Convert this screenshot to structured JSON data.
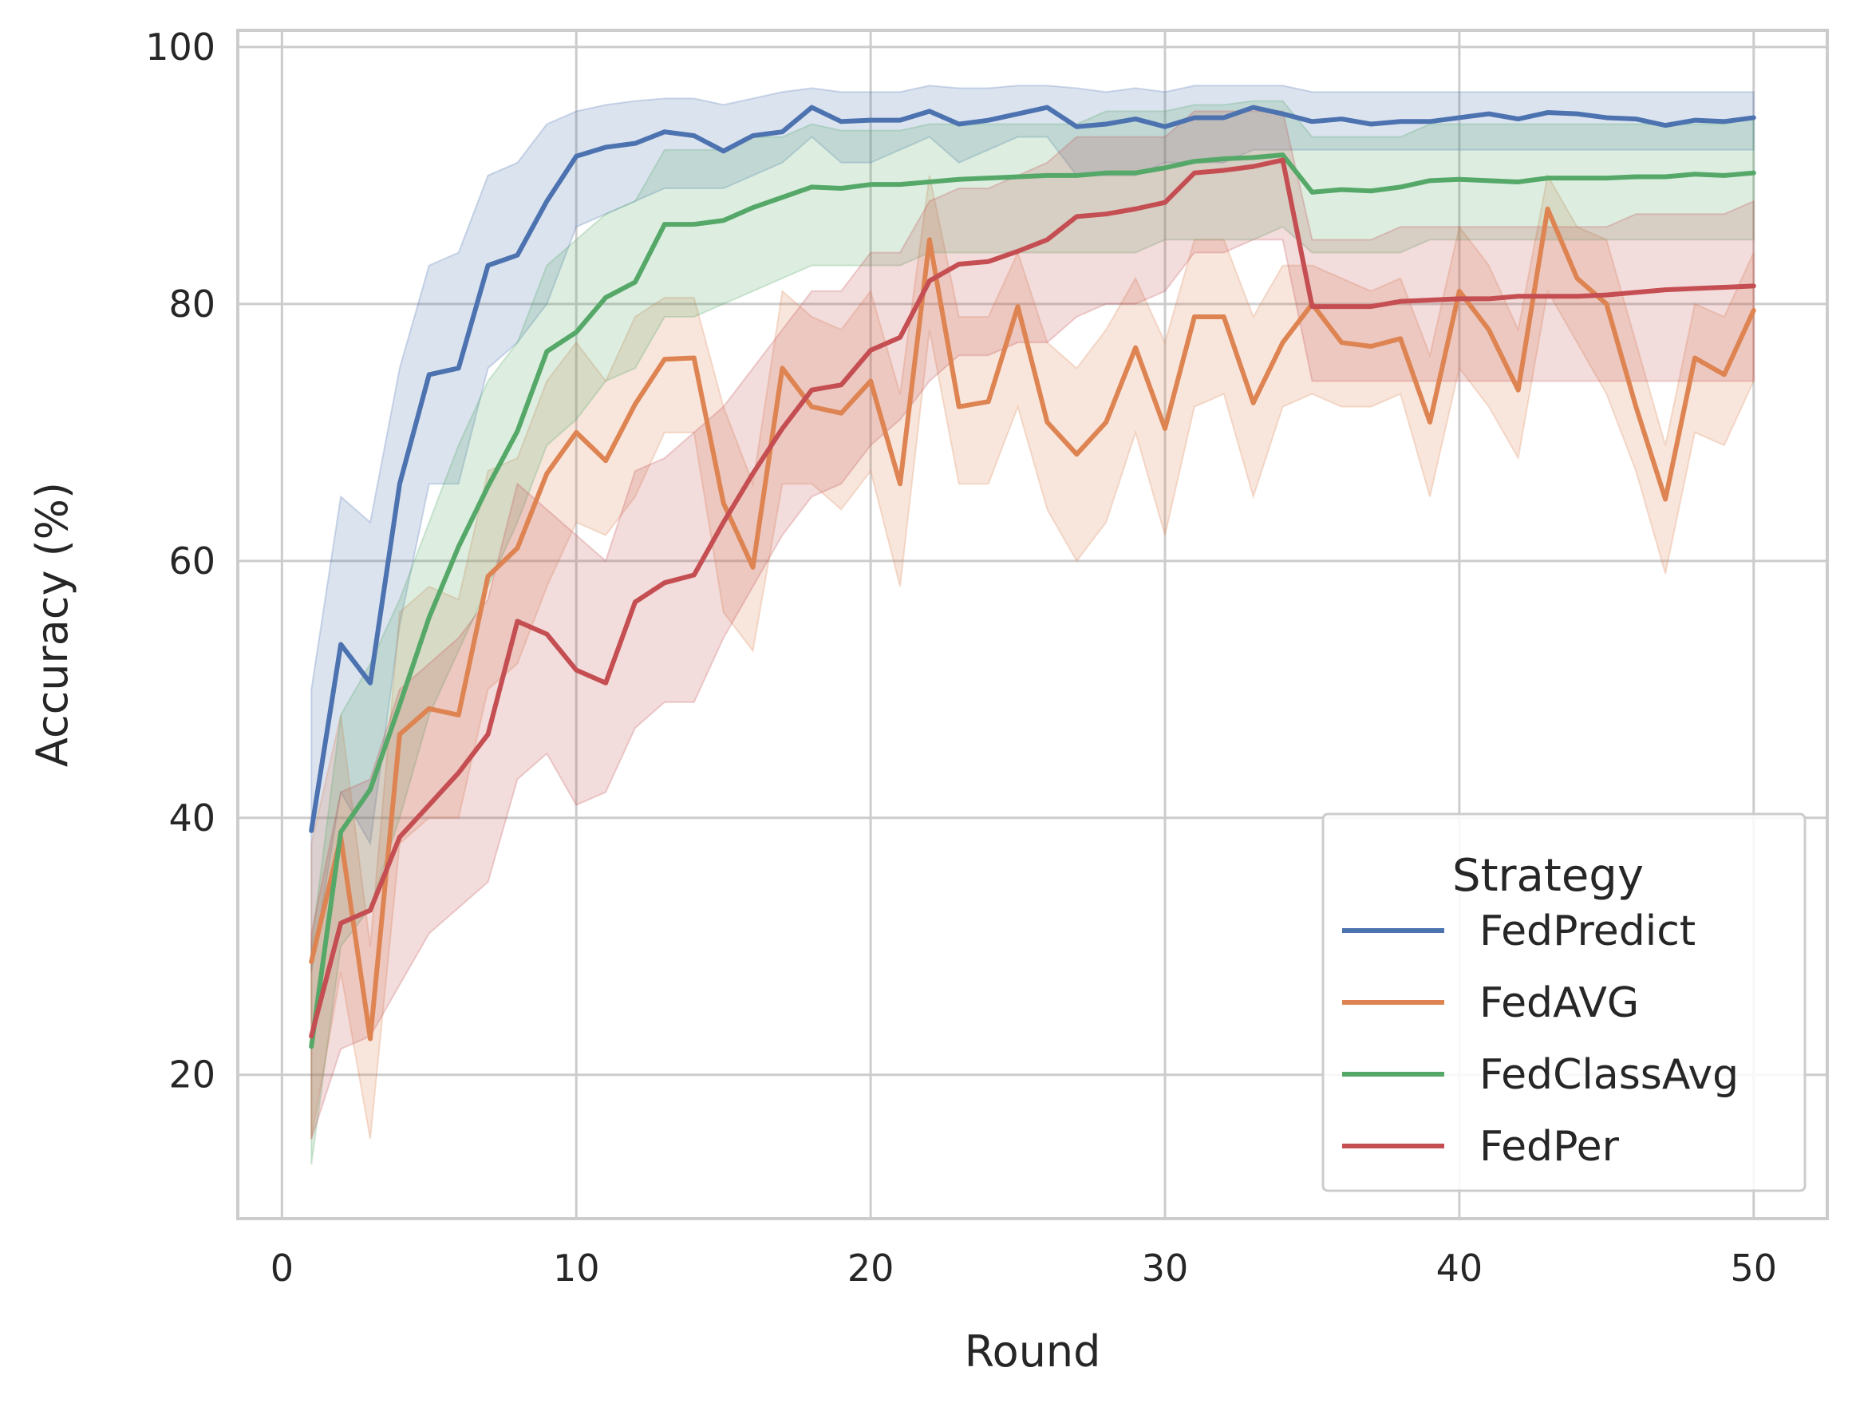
{
  "chart_data": {
    "type": "line",
    "title": "",
    "xlabel": "Round",
    "ylabel": "Accuracy (%)",
    "xlim": [
      -1.5,
      52.5
    ],
    "ylim": [
      8.8,
      101.3
    ],
    "xticks": [
      0,
      10,
      20,
      30,
      40,
      50
    ],
    "yticks": [
      20,
      40,
      60,
      80,
      100
    ],
    "grid": true,
    "legend": {
      "title": "Strategy",
      "placement": "lower-right"
    },
    "x": [
      1,
      2,
      3,
      4,
      5,
      6,
      7,
      8,
      9,
      10,
      11,
      12,
      13,
      14,
      15,
      16,
      17,
      18,
      19,
      20,
      21,
      22,
      23,
      24,
      25,
      26,
      27,
      28,
      29,
      30,
      31,
      32,
      33,
      34,
      35,
      36,
      37,
      38,
      39,
      40,
      41,
      42,
      43,
      44,
      45,
      46,
      47,
      48,
      49,
      50
    ],
    "series": [
      {
        "name": "FedPredict",
        "color": "#4c72b0",
        "values": [
          39.0,
          53.5,
          50.5,
          66.0,
          74.5,
          75.0,
          83.0,
          83.8,
          88.0,
          91.5,
          92.2,
          92.5,
          93.4,
          93.1,
          91.9,
          93.1,
          93.4,
          95.3,
          94.2,
          94.3,
          94.3,
          95.0,
          94.0,
          94.3,
          94.8,
          95.3,
          93.8,
          94.0,
          94.4,
          93.8,
          94.5,
          94.5,
          95.3,
          94.8,
          94.2,
          94.4,
          94.0,
          94.2,
          94.2,
          94.5,
          94.8,
          94.4,
          94.9,
          94.8,
          94.5,
          94.4,
          93.9,
          94.3,
          94.2,
          94.5
        ],
        "lower": [
          28,
          42,
          38,
          55,
          66,
          66,
          75,
          77,
          80,
          86,
          87,
          88,
          89,
          89,
          89,
          90,
          91,
          93,
          91,
          91,
          92,
          93,
          91,
          92,
          93,
          93,
          90,
          90,
          90,
          91,
          91,
          91,
          92,
          92,
          92,
          92,
          92,
          92,
          92,
          92,
          92,
          92,
          92,
          92,
          92,
          92,
          92,
          92,
          92,
          92
        ],
        "upper": [
          50,
          65,
          63,
          75,
          83,
          84,
          90,
          91,
          94,
          95,
          95.5,
          95.8,
          96,
          96,
          95.5,
          96,
          96.5,
          96.8,
          96.5,
          96.5,
          96.5,
          97,
          96.8,
          96.8,
          97,
          97,
          96.8,
          96.5,
          96.8,
          96.5,
          97,
          97,
          97,
          97,
          96.5,
          96.5,
          96.5,
          96.5,
          96.5,
          96.5,
          96.5,
          96.5,
          96.5,
          96.5,
          96.5,
          96.5,
          96.5,
          96.5,
          96.5,
          96.5
        ]
      },
      {
        "name": "FedAVG",
        "color": "#dd8452",
        "values": [
          28.8,
          38.5,
          22.8,
          46.5,
          48.5,
          48.0,
          58.8,
          61.0,
          66.8,
          70.0,
          67.8,
          72.2,
          75.7,
          75.8,
          64.5,
          59.5,
          75.0,
          72.0,
          71.5,
          74.0,
          66.0,
          85.0,
          72.0,
          72.4,
          79.8,
          70.8,
          68.3,
          70.8,
          76.6,
          70.3,
          79.0,
          79.0,
          72.3,
          77.0,
          80.0,
          77.0,
          76.7,
          77.3,
          70.8,
          81.0,
          78.0,
          73.3,
          87.4,
          82.0,
          80.0,
          72.0,
          64.8,
          75.8,
          74.5,
          79.5
        ],
        "lower": [
          15,
          28,
          15,
          38,
          40,
          40,
          50,
          52,
          58,
          63,
          62,
          65,
          70,
          70,
          56,
          53,
          66,
          66,
          64,
          67,
          58,
          78,
          66,
          66,
          72,
          64,
          60,
          63,
          70,
          62,
          72,
          73,
          65,
          72,
          73,
          72,
          72,
          73,
          65,
          75,
          72,
          68,
          81,
          77,
          73,
          67,
          59,
          70,
          69,
          74
        ],
        "upper": [
          38,
          48,
          30,
          56,
          58,
          57,
          67,
          68,
          74,
          77,
          74,
          79,
          80.5,
          80.5,
          72,
          66,
          81,
          79,
          78,
          81,
          73,
          90,
          79,
          79,
          84,
          77,
          75,
          78,
          82,
          77,
          85,
          85,
          79,
          83,
          83,
          82,
          81,
          82,
          76,
          86,
          83,
          78,
          90,
          86,
          85,
          77,
          69,
          80,
          79,
          84
        ]
      },
      {
        "name": "FedClassAvg",
        "color": "#55a868",
        "values": [
          22.2,
          38.9,
          42.2,
          48.8,
          55.6,
          61.1,
          65.8,
          70.1,
          76.3,
          77.8,
          80.5,
          81.7,
          86.2,
          86.2,
          86.5,
          87.5,
          88.3,
          89.1,
          89.0,
          89.3,
          89.3,
          89.5,
          89.7,
          89.8,
          89.9,
          90.0,
          90.0,
          90.2,
          90.2,
          90.6,
          91.1,
          91.3,
          91.4,
          91.6,
          88.7,
          88.9,
          88.8,
          89.1,
          89.6,
          89.7,
          89.6,
          89.5,
          89.8,
          89.8,
          89.8,
          89.9,
          89.9,
          90.1,
          90.0,
          90.2
        ],
        "lower": [
          13,
          30,
          33,
          40,
          48,
          53,
          58,
          63,
          69,
          71,
          74,
          75,
          79,
          79,
          80,
          81,
          82,
          83,
          83,
          83,
          83,
          84,
          84,
          84,
          84,
          84,
          84,
          84,
          84,
          85,
          85,
          85,
          85,
          86,
          84,
          84,
          84,
          84,
          85,
          85,
          85,
          85,
          85,
          85,
          85,
          85,
          85,
          85,
          85,
          85
        ],
        "upper": [
          30,
          48,
          52,
          57,
          63,
          69,
          74,
          77,
          83,
          85,
          87,
          88,
          92,
          92,
          92,
          93,
          93,
          94,
          93.5,
          93.5,
          93.5,
          94,
          94,
          94,
          94,
          94,
          94,
          95,
          95,
          95,
          95.5,
          95.5,
          95.8,
          95.8,
          93,
          93,
          93,
          93,
          94,
          94,
          94,
          94,
          94,
          94,
          94,
          94,
          94,
          94,
          94,
          94.5
        ]
      },
      {
        "name": "FedPer",
        "color": "#c44e52",
        "values": [
          23.0,
          31.8,
          32.8,
          38.5,
          41.0,
          43.5,
          46.5,
          55.3,
          54.3,
          51.5,
          50.5,
          56.8,
          58.3,
          58.9,
          63.0,
          66.8,
          70.3,
          73.3,
          73.7,
          76.4,
          77.4,
          81.8,
          83.1,
          83.3,
          84.1,
          85.0,
          86.8,
          87.0,
          87.4,
          87.9,
          90.2,
          90.4,
          90.7,
          91.2,
          79.8,
          79.8,
          79.8,
          80.2,
          80.3,
          80.4,
          80.4,
          80.6,
          80.6,
          80.6,
          80.7,
          80.9,
          81.1,
          81.2,
          81.3,
          81.4
        ],
        "lower": [
          15,
          22,
          23,
          27,
          31,
          33,
          35,
          43,
          45,
          41,
          42,
          47,
          49,
          49,
          54,
          58,
          62,
          65,
          66,
          69,
          71,
          74,
          76,
          76,
          77,
          77,
          79,
          80,
          80,
          81,
          84,
          84,
          85,
          85,
          74,
          74,
          74,
          74,
          74,
          74,
          74,
          74,
          74,
          74,
          74,
          74,
          74,
          74,
          74,
          74
        ],
        "upper": [
          31,
          42,
          43,
          50,
          52,
          54,
          57,
          66,
          64,
          62,
          60,
          67,
          68,
          70,
          72,
          75,
          78,
          81,
          81,
          84,
          84,
          88,
          89,
          89,
          90,
          91,
          93,
          93,
          93,
          93,
          95,
          95,
          95,
          95,
          85,
          85,
          85,
          86,
          86,
          86,
          86,
          86,
          86,
          86,
          86,
          87,
          87,
          87,
          87,
          88
        ]
      }
    ]
  }
}
